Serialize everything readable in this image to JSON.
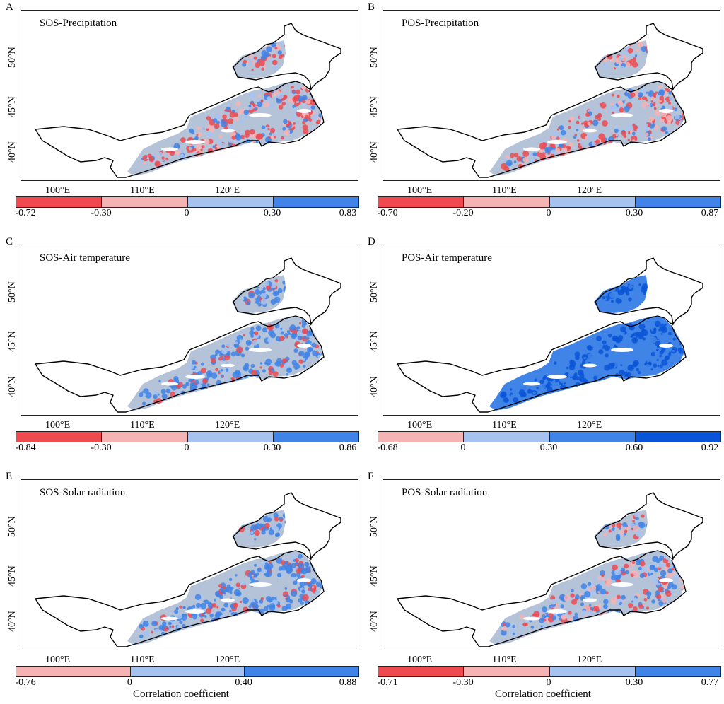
{
  "axes": {
    "lat_labels": [
      "50°N",
      "45°N",
      "40°N"
    ],
    "lon_labels": [
      "100°E",
      "110°E",
      "120°E"
    ]
  },
  "colors": {
    "strong_negative": "#ef4a4f",
    "weak_negative": "#f6b3b3",
    "weak_positive": "#a6c3f0",
    "strong_positive": "#3f84e6",
    "very_strong_positive": "#0a55d7",
    "neutral_fill": "#b5c3d9",
    "boundary": "#000000"
  },
  "colorbar_caption": "Correlation coefficient",
  "panels": [
    {
      "letter": "A",
      "title": "SOS-Precipitation",
      "pattern": "mixed",
      "colorbar": {
        "segment_colors": [
          "strong_negative",
          "weak_negative",
          "weak_positive",
          "strong_positive"
        ],
        "tick_labels": [
          "-0.72",
          "-0.30",
          "0",
          "0.30",
          "0.83"
        ]
      },
      "caption": ""
    },
    {
      "letter": "B",
      "title": "POS-Precipitation",
      "pattern": "mixed",
      "colorbar": {
        "segment_colors": [
          "strong_negative",
          "weak_negative",
          "weak_positive",
          "strong_positive"
        ],
        "tick_labels": [
          "-0.70",
          "-0.20",
          "0",
          "0.30",
          "0.87"
        ]
      },
      "caption": ""
    },
    {
      "letter": "C",
      "title": "SOS-Air temperature",
      "pattern": "positive_light",
      "colorbar": {
        "segment_colors": [
          "strong_negative",
          "weak_negative",
          "weak_positive",
          "strong_positive"
        ],
        "tick_labels": [
          "-0.84",
          "-0.30",
          "0",
          "0.30",
          "0.86"
        ]
      },
      "caption": ""
    },
    {
      "letter": "D",
      "title": "POS-Air temperature",
      "pattern": "positive_strong",
      "colorbar": {
        "segment_colors": [
          "weak_negative",
          "weak_positive",
          "strong_positive",
          "very_strong_positive"
        ],
        "tick_labels": [
          "-0.68",
          "0",
          "0.30",
          "0.60",
          "0.92"
        ]
      },
      "caption": ""
    },
    {
      "letter": "E",
      "title": "SOS-Solar radiation",
      "pattern": "positive_light",
      "colorbar": {
        "segment_colors": [
          "weak_negative",
          "weak_positive",
          "strong_positive"
        ],
        "tick_labels": [
          "-0.76",
          "0",
          "0.40",
          "0.88"
        ]
      },
      "caption": "Correlation coefficient"
    },
    {
      "letter": "F",
      "title": "POS-Solar radiation",
      "pattern": "mixed_light",
      "colorbar": {
        "segment_colors": [
          "strong_negative",
          "weak_negative",
          "weak_positive",
          "strong_positive"
        ],
        "tick_labels": [
          "-0.71",
          "-0.30",
          "0",
          "0.30",
          "0.77"
        ]
      },
      "caption": "Correlation coefficient"
    }
  ]
}
